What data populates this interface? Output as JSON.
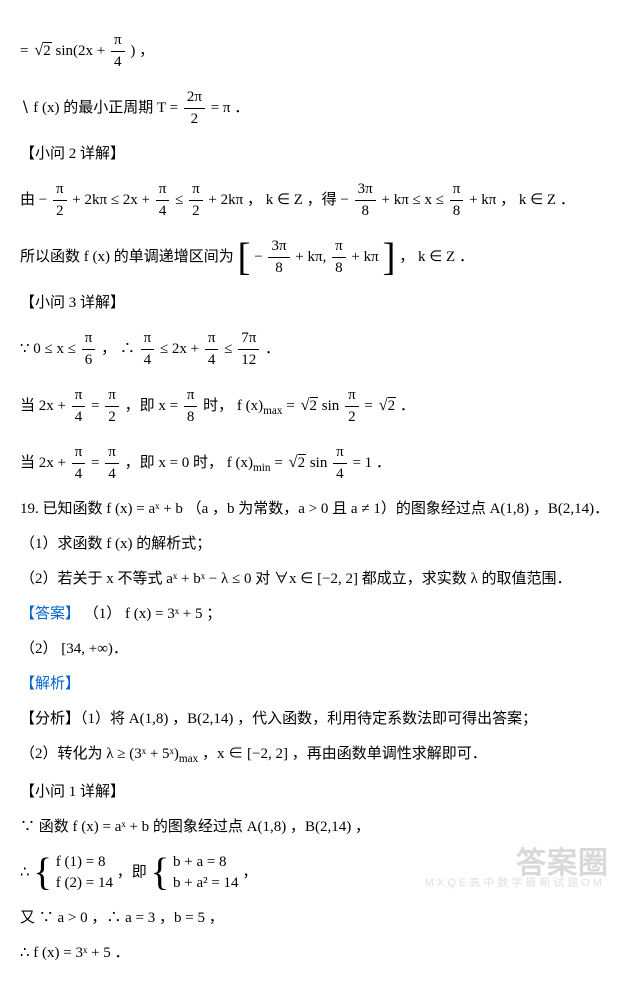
{
  "colors": {
    "text": "#000000",
    "accent": "#0066cc",
    "bg": "#ffffff",
    "watermark": "#d9d9d9"
  },
  "typography": {
    "body_fontsize_pt": 11,
    "line_height": 1.4,
    "font_family": "SimSun / Times"
  },
  "lines": {
    "l1_eq": "= ",
    "l1_root": "2",
    "l1_sin": " sin(2x + ",
    "l1_frac_num": "π",
    "l1_frac_den": "4",
    "l1_end": ") ，",
    "l2_a": "∖ f (x) 的最小正周期 T = ",
    "l2_frac_num": "2π",
    "l2_frac_den": "2",
    "l2_b": " = π ．",
    "h2": "【小问 2 详解】",
    "l3_a": "由 − ",
    "l3_f1n": "π",
    "l3_f1d": "2",
    "l3_b": " + 2kπ ≤ 2x + ",
    "l3_f2n": "π",
    "l3_f2d": "4",
    "l3_c": " ≤ ",
    "l3_f3n": "π",
    "l3_f3d": "2",
    "l3_d": " + 2kπ ， k ∈ Z ，得 − ",
    "l3_f4n": "3π",
    "l3_f4d": "8",
    "l3_e": " + kπ ≤ x ≤ ",
    "l3_f5n": "π",
    "l3_f5d": "8",
    "l3_f": " + kπ ， k ∈ Z ．",
    "l4_a": "所以函数 f (x) 的单调递增区间为 ",
    "l4_b1": "− ",
    "l4_f1n": "3π",
    "l4_f1d": "8",
    "l4_c": " + kπ, ",
    "l4_f2n": "π",
    "l4_f2d": "8",
    "l4_d": " + kπ",
    "l4_e": " ， k ∈ Z ．",
    "h3": "【小问 3 详解】",
    "l5_a": "∵ 0 ≤ x ≤ ",
    "l5_f1n": "π",
    "l5_f1d": "6",
    "l5_b": " ， ∴ ",
    "l5_f2n": "π",
    "l5_f2d": "4",
    "l5_c": " ≤ 2x + ",
    "l5_f3n": "π",
    "l5_f3d": "4",
    "l5_d": " ≤ ",
    "l5_f4n": "7π",
    "l5_f4d": "12",
    "l5_e": " ．",
    "l6_a": "当 2x + ",
    "l6_f1n": "π",
    "l6_f1d": "4",
    "l6_b": " = ",
    "l6_f2n": "π",
    "l6_f2d": "2",
    "l6_c": " ，即 x = ",
    "l6_f3n": "π",
    "l6_f3d": "8",
    "l6_d": " 时， f (x)",
    "l6_sub": "max",
    "l6_e": " = ",
    "l6_r1": "2",
    "l6_f": " sin ",
    "l6_f4n": "π",
    "l6_f4d": "2",
    "l6_g": " = ",
    "l6_r2": "2",
    "l6_h": " ．",
    "l7_a": "当 2x + ",
    "l7_f1n": "π",
    "l7_f1d": "4",
    "l7_b": " = ",
    "l7_f2n": "π",
    "l7_f2d": "4",
    "l7_c": " ，即 x = 0 时， f (x)",
    "l7_sub": "min",
    "l7_d": " = ",
    "l7_r1": "2",
    "l7_e": " sin ",
    "l7_f3n": "π",
    "l7_f3d": "4",
    "l7_f": " = 1 ．",
    "q19": "19.  已知函数 f (x) = aˣ + b （a ，b 为常数，a > 0 且 a ≠ 1）的图象经过点 A(1,8) ，B(2,14)．",
    "q19_1": "（1）求函数 f (x) 的解析式；",
    "q19_2": "（2）若关于 x 不等式 aˣ + bˣ − λ ≤ 0 对 ∀x ∈ [−2, 2] 都成立，求实数 λ 的取值范围．",
    "ans_label": "【答案】",
    "ans1": "（1） f (x) = 3ˣ + 5 ；",
    "ans2": "（2） [34, +∞)．",
    "jx": "【解析】",
    "fx_a": "【分析】（1）将 A(1,8) ，B(2,14) ，代入函数，利用待定系数法即可得出答案；",
    "fx_b": "（2）转化为 λ ≥ (3ˣ + 5ˣ)",
    "fx_b_sub": "max",
    "fx_b2": " ，x ∈ [−2, 2] ，再由函数单调性求解即可．",
    "h1b": "【小问 1 详解】",
    "s1": "∵ 函数 f (x) = aˣ + b 的图象经过点 A(1,8) ，B(2,14) ，",
    "s2_a": "∴ ",
    "s2_b1": "f (1) = 8",
    "s2_b2": "f (2) = 14",
    "s2_c": " ，即 ",
    "s2_d1": "b + a = 8",
    "s2_d2": "b + a² = 14",
    "s2_e": " ，",
    "s3": "又 ∵ a > 0 ，∴ a = 3 ，b = 5 ，",
    "s4": "∴ f (x) = 3ˣ + 5 ．"
  },
  "watermark": "答案圈",
  "watermark2": "MXQE高中数学最新试题OM"
}
